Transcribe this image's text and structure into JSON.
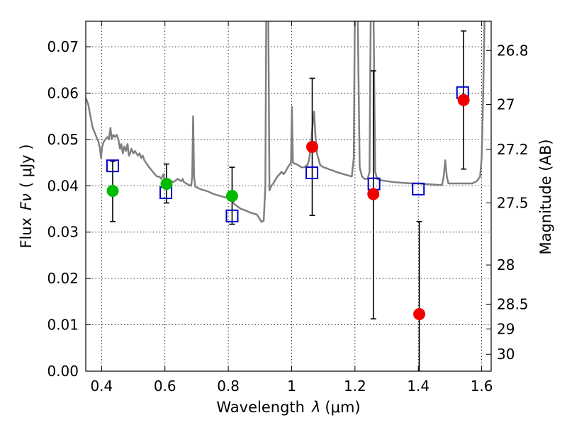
{
  "chart_data": {
    "type": "scatter",
    "title": "",
    "xlabel_prefix": "Wavelength",
    "xlabel_symbol": "λ",
    "xlabel_unit": "(μm)",
    "ylabel_prefix": "Flux",
    "ylabel_symbol": "Fν",
    "ylabel_unit": "( μJy )",
    "y2label": "Magnitude (AB)",
    "xlim": [
      0.35,
      1.63
    ],
    "ylim": [
      0.0,
      0.0755
    ],
    "x_ticks": [
      0.4,
      0.6,
      0.8,
      1.0,
      1.2,
      1.4,
      1.6
    ],
    "x_tick_labels": [
      "0.4",
      "0.6",
      "0.8",
      "1",
      "1.2",
      "1.4",
      "1.6"
    ],
    "y_ticks": [
      0.0,
      0.01,
      0.02,
      0.03,
      0.04,
      0.05,
      0.06,
      0.07
    ],
    "y_tick_labels": [
      "0.00",
      "0.01",
      "0.02",
      "0.03",
      "0.04",
      "0.05",
      "0.06",
      "0.07"
    ],
    "magnitude_ticks": [
      {
        "mag": 26.8,
        "label": "26.8"
      },
      {
        "mag": 27.0,
        "label": "27"
      },
      {
        "mag": 27.2,
        "label": "27.2"
      },
      {
        "mag": 27.5,
        "label": "27.5"
      },
      {
        "mag": 28.0,
        "label": "28"
      },
      {
        "mag": 28.5,
        "label": "28.5"
      },
      {
        "mag": 29.0,
        "label": "29"
      },
      {
        "mag": 30.0,
        "label": "30"
      }
    ],
    "magnitude_zero_point_uJy": 3631000000,
    "grid": true,
    "colors": {
      "model": "#808080",
      "model_point": "#0000cc",
      "optical_obs": "#00bb00",
      "nir_obs": "#ee0000",
      "errorbar": "#000000"
    },
    "series": [
      {
        "kind": "model-spectrum",
        "points": [
          [
            0.35,
            0.059
          ],
          [
            0.358,
            0.0575
          ],
          [
            0.366,
            0.0545
          ],
          [
            0.372,
            0.0525
          ],
          [
            0.378,
            0.0515
          ],
          [
            0.384,
            0.0505
          ],
          [
            0.39,
            0.0495
          ],
          [
            0.395,
            0.048
          ],
          [
            0.398,
            0.046
          ],
          [
            0.402,
            0.0485
          ],
          [
            0.407,
            0.0495
          ],
          [
            0.412,
            0.05
          ],
          [
            0.418,
            0.0505
          ],
          [
            0.423,
            0.05
          ],
          [
            0.428,
            0.0525
          ],
          [
            0.432,
            0.05
          ],
          [
            0.437,
            0.051
          ],
          [
            0.442,
            0.0505
          ],
          [
            0.448,
            0.051
          ],
          [
            0.453,
            0.05
          ],
          [
            0.458,
            0.048
          ],
          [
            0.462,
            0.049
          ],
          [
            0.467,
            0.047
          ],
          [
            0.472,
            0.0485
          ],
          [
            0.477,
            0.0475
          ],
          [
            0.482,
            0.049
          ],
          [
            0.486,
            0.0465
          ],
          [
            0.49,
            0.047
          ],
          [
            0.494,
            0.048
          ],
          [
            0.5,
            0.047
          ],
          [
            0.505,
            0.0475
          ],
          [
            0.51,
            0.047
          ],
          [
            0.515,
            0.0465
          ],
          [
            0.52,
            0.047
          ],
          [
            0.525,
            0.046
          ],
          [
            0.53,
            0.0465
          ],
          [
            0.535,
            0.0455
          ],
          [
            0.54,
            0.045
          ],
          [
            0.545,
            0.0445
          ],
          [
            0.55,
            0.044
          ],
          [
            0.556,
            0.0435
          ],
          [
            0.562,
            0.043
          ],
          [
            0.568,
            0.0425
          ],
          [
            0.575,
            0.042
          ],
          [
            0.582,
            0.042
          ],
          [
            0.588,
            0.0415
          ],
          [
            0.595,
            0.0425
          ],
          [
            0.6,
            0.041
          ],
          [
            0.607,
            0.0415
          ],
          [
            0.613,
            0.0412
          ],
          [
            0.62,
            0.041
          ],
          [
            0.627,
            0.0408
          ],
          [
            0.635,
            0.0412
          ],
          [
            0.64,
            0.0415
          ],
          [
            0.646,
            0.0412
          ],
          [
            0.652,
            0.041
          ],
          [
            0.656,
            0.0415
          ],
          [
            0.66,
            0.0408
          ],
          [
            0.667,
            0.0405
          ],
          [
            0.675,
            0.0402
          ],
          [
            0.683,
            0.04
          ],
          [
            0.686,
            0.042
          ],
          [
            0.689,
            0.055
          ],
          [
            0.692,
            0.042
          ],
          [
            0.696,
            0.0398
          ],
          [
            0.705,
            0.0395
          ],
          [
            0.715,
            0.0392
          ],
          [
            0.725,
            0.039
          ],
          [
            0.735,
            0.0388
          ],
          [
            0.745,
            0.0385
          ],
          [
            0.755,
            0.0382
          ],
          [
            0.765,
            0.038
          ],
          [
            0.775,
            0.0378
          ],
          [
            0.785,
            0.0376
          ],
          [
            0.795,
            0.0374
          ],
          [
            0.805,
            0.037
          ],
          [
            0.812,
            0.0368
          ],
          [
            0.82,
            0.036
          ],
          [
            0.83,
            0.0355
          ],
          [
            0.84,
            0.035
          ],
          [
            0.85,
            0.0348
          ],
          [
            0.86,
            0.0345
          ],
          [
            0.87,
            0.0342
          ],
          [
            0.88,
            0.034
          ],
          [
            0.89,
            0.0338
          ],
          [
            0.898,
            0.033
          ],
          [
            0.905,
            0.0322
          ],
          [
            0.912,
            0.0325
          ],
          [
            0.917,
            0.04
          ],
          [
            0.92,
            0.08
          ],
          [
            0.926,
            0.08
          ],
          [
            0.93,
            0.039
          ],
          [
            0.936,
            0.04
          ],
          [
            0.942,
            0.0405
          ],
          [
            0.948,
            0.0412
          ],
          [
            0.955,
            0.042
          ],
          [
            0.962,
            0.0425
          ],
          [
            0.968,
            0.043
          ],
          [
            0.975,
            0.0425
          ],
          [
            0.982,
            0.0432
          ],
          [
            0.988,
            0.044
          ],
          [
            0.993,
            0.0445
          ],
          [
            0.998,
            0.045
          ],
          [
            1.001,
            0.057
          ],
          [
            1.004,
            0.045
          ],
          [
            1.01,
            0.0448
          ],
          [
            1.02,
            0.0445
          ],
          [
            1.03,
            0.044
          ],
          [
            1.04,
            0.044
          ],
          [
            1.05,
            0.0445
          ],
          [
            1.055,
            0.0455
          ],
          [
            1.06,
            0.048
          ],
          [
            1.066,
            0.053
          ],
          [
            1.071,
            0.056
          ],
          [
            1.075,
            0.051
          ],
          [
            1.08,
            0.047
          ],
          [
            1.09,
            0.0445
          ],
          [
            1.1,
            0.044
          ],
          [
            1.11,
            0.0438
          ],
          [
            1.12,
            0.0435
          ],
          [
            1.13,
            0.0433
          ],
          [
            1.14,
            0.043
          ],
          [
            1.15,
            0.0428
          ],
          [
            1.16,
            0.0426
          ],
          [
            1.17,
            0.0424
          ],
          [
            1.18,
            0.0422
          ],
          [
            1.19,
            0.042
          ],
          [
            1.196,
            0.046
          ],
          [
            1.2,
            0.08
          ],
          [
            1.208,
            0.08
          ],
          [
            1.215,
            0.044
          ],
          [
            1.222,
            0.042
          ],
          [
            1.23,
            0.0415
          ],
          [
            1.24,
            0.0415
          ],
          [
            1.246,
            0.043
          ],
          [
            1.25,
            0.08
          ],
          [
            1.258,
            0.08
          ],
          [
            1.264,
            0.043
          ],
          [
            1.27,
            0.0415
          ],
          [
            1.28,
            0.0412
          ],
          [
            1.3,
            0.041
          ],
          [
            1.32,
            0.0408
          ],
          [
            1.34,
            0.0407
          ],
          [
            1.36,
            0.0406
          ],
          [
            1.38,
            0.0405
          ],
          [
            1.4,
            0.0405
          ],
          [
            1.42,
            0.0404
          ],
          [
            1.44,
            0.0403
          ],
          [
            1.46,
            0.0402
          ],
          [
            1.475,
            0.0402
          ],
          [
            1.48,
            0.042
          ],
          [
            1.485,
            0.0455
          ],
          [
            1.49,
            0.042
          ],
          [
            1.495,
            0.0405
          ],
          [
            1.51,
            0.0405
          ],
          [
            1.53,
            0.0405
          ],
          [
            1.55,
            0.0405
          ],
          [
            1.57,
            0.0405
          ],
          [
            1.585,
            0.041
          ],
          [
            1.595,
            0.042
          ],
          [
            1.6,
            0.046
          ],
          [
            1.605,
            0.06
          ],
          [
            1.61,
            0.08
          ]
        ]
      },
      {
        "kind": "model-photometry",
        "points": [
          [
            0.435,
            0.0443
          ],
          [
            0.603,
            0.0385
          ],
          [
            0.812,
            0.0335
          ],
          [
            1.064,
            0.0428
          ],
          [
            1.26,
            0.0404
          ],
          [
            1.4,
            0.0393
          ],
          [
            1.54,
            0.0601
          ]
        ]
      },
      {
        "kind": "observed-optical",
        "points": [
          {
            "x": 0.435,
            "y": 0.0389,
            "ylow": 0.0323,
            "yhigh": 0.0453
          },
          {
            "x": 0.605,
            "y": 0.0404,
            "ylow": 0.0363,
            "yhigh": 0.0447
          },
          {
            "x": 0.812,
            "y": 0.0378,
            "ylow": 0.0317,
            "yhigh": 0.044
          }
        ]
      },
      {
        "kind": "observed-nir",
        "points": [
          {
            "x": 1.065,
            "y": 0.0484,
            "ylow": 0.0336,
            "yhigh": 0.0632
          },
          {
            "x": 1.258,
            "y": 0.0382,
            "ylow": 0.0113,
            "yhigh": 0.0648
          },
          {
            "x": 1.403,
            "y": 0.0123,
            "ylow": 0.0,
            "yhigh": 0.0323
          },
          {
            "x": 1.543,
            "y": 0.0585,
            "ylow": 0.0436,
            "yhigh": 0.0734
          }
        ]
      }
    ]
  }
}
